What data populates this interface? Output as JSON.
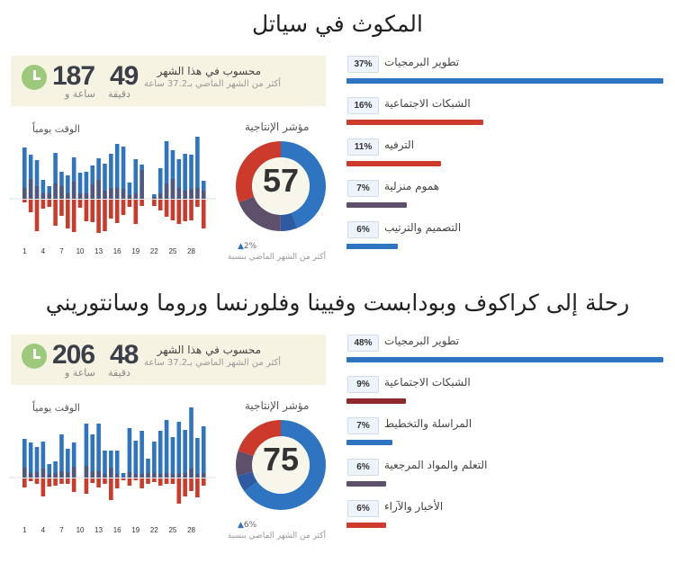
{
  "colors": {
    "productive": "#2f74c0",
    "very_productive": "#2d5aa0",
    "neutral": "#5e4f6a",
    "distracting": "#cc3a2b",
    "very_distracting": "#8e2a2e",
    "summary_bg": "#f6f3e3",
    "clock": "#9cc97b"
  },
  "sections": [
    {
      "title": "المكوث في سياتل",
      "summary": {
        "icon": "clock-icon",
        "hours": "187",
        "hours_unit": "ساعة و",
        "minutes": "49",
        "minutes_unit": "دقيقة",
        "label": "محسوب في هذا الشهر",
        "comparison": "أكثر من الشهر الماضي بـ37.2 ساعة"
      },
      "daily_label": "الوقت يومياً",
      "productivity": {
        "label": "مؤشر الإنتاجية",
        "score": "57",
        "change": "2%",
        "change_icon": "arrow-up-icon",
        "change_note": "أكثر من الشهر الماضي بنسبة",
        "segments": [
          {
            "kind": "productive",
            "percent": 44
          },
          {
            "kind": "very_productive",
            "percent": 6
          },
          {
            "kind": "neutral",
            "percent": 19
          },
          {
            "kind": "distracting",
            "percent": 31
          }
        ]
      },
      "chart_data": {
        "type": "bar",
        "tick_labels": [
          "1",
          "4",
          "7",
          "10",
          "13",
          "16",
          "19",
          "22",
          "25",
          "28"
        ],
        "days": [
          1,
          2,
          3,
          4,
          5,
          6,
          7,
          8,
          9,
          10,
          11,
          12,
          13,
          14,
          15,
          16,
          17,
          18,
          19,
          20,
          21,
          22,
          23,
          24,
          25,
          26,
          27,
          28,
          29,
          30
        ],
        "productive": [
          57,
          49,
          43,
          21,
          14,
          51,
          30,
          26,
          46,
          29,
          30,
          37,
          45,
          39,
          50,
          61,
          58,
          18,
          44,
          38,
          0,
          5,
          34,
          64,
          54,
          44,
          50,
          49,
          69,
          20
        ],
        "neutral": [
          12,
          22,
          14,
          6,
          6,
          17,
          14,
          6,
          19,
          6,
          6,
          16,
          21,
          9,
          12,
          12,
          11,
          4,
          6,
          32,
          0,
          2,
          6,
          17,
          22,
          12,
          9,
          11,
          12,
          9
        ],
        "distracting": [
          3,
          14,
          35,
          10,
          8,
          29,
          18,
          32,
          36,
          9,
          24,
          25,
          37,
          35,
          21,
          26,
          17,
          8,
          27,
          7,
          0,
          7,
          12,
          19,
          23,
          27,
          24,
          23,
          8,
          32
        ]
      },
      "categories": [
        {
          "name": "تطوير البرمجيات",
          "percent": 37,
          "label": "37%",
          "color": "productive"
        },
        {
          "name": "الشبكات الاجتماعية",
          "percent": 16,
          "label": "16%",
          "color": "distracting"
        },
        {
          "name": "الترفيه",
          "percent": 11,
          "label": "11%",
          "color": "distracting"
        },
        {
          "name": "هموم منزلية",
          "percent": 7,
          "label": "7%",
          "color": "neutral"
        },
        {
          "name": "التصميم والترتيب",
          "percent": 6,
          "label": "6%",
          "color": "productive"
        }
      ]
    },
    {
      "title": "رحلة إلى كراكوف وبودابست وفيينا وفلورنسا وروما وسانتوريني",
      "summary": {
        "icon": "clock-icon",
        "hours": "206",
        "hours_unit": "ساعة و",
        "minutes": "48",
        "minutes_unit": "دقيقة",
        "label": "محسوب في هذا الشهر",
        "comparison": "أكثر من الشهر الماضي بـ37.2 ساعة"
      },
      "daily_label": "الوقت يومياً",
      "productivity": {
        "label": "مؤشر الإنتاجية",
        "score": "75",
        "change": "6%",
        "change_icon": "arrow-up-icon",
        "change_note": "أكثر من الشهر الماضي بنسبة",
        "segments": [
          {
            "kind": "productive",
            "percent": 65
          },
          {
            "kind": "very_productive",
            "percent": 6
          },
          {
            "kind": "neutral",
            "percent": 9
          },
          {
            "kind": "distracting",
            "percent": 20
          }
        ]
      },
      "chart_data": {
        "type": "bar",
        "tick_labels": [
          "1",
          "4",
          "7",
          "10",
          "13",
          "16",
          "19",
          "22",
          "25",
          "28"
        ],
        "days": [
          1,
          2,
          3,
          4,
          5,
          6,
          7,
          8,
          9,
          10,
          11,
          12,
          13,
          14,
          15,
          16,
          17,
          18,
          19,
          20,
          21,
          22,
          23,
          24,
          25,
          26,
          27,
          28,
          29,
          30
        ],
        "productive": [
          43,
          39,
          34,
          40,
          15,
          18,
          48,
          32,
          39,
          0,
          60,
          48,
          60,
          30,
          30,
          30,
          5,
          55,
          41,
          52,
          21,
          40,
          52,
          64,
          45,
          62,
          53,
          78,
          44,
          57
        ],
        "neutral": [
          11,
          5,
          6,
          10,
          4,
          5,
          7,
          6,
          12,
          0,
          13,
          7,
          7,
          4,
          11,
          4,
          0,
          6,
          4,
          4,
          5,
          5,
          4,
          5,
          4,
          5,
          5,
          10,
          4,
          5
        ],
        "distracting": [
          10,
          3,
          6,
          20,
          9,
          8,
          6,
          6,
          15,
          0,
          17,
          5,
          10,
          6,
          24,
          11,
          2,
          8,
          2,
          11,
          6,
          4,
          8,
          6,
          6,
          28,
          20,
          14,
          21,
          8
        ]
      },
      "categories": [
        {
          "name": "تطوير البرمجيات",
          "percent": 48,
          "label": "48%",
          "color": "productive"
        },
        {
          "name": "الشبكات الاجتماعية",
          "percent": 9,
          "label": "9%",
          "color": "very_distracting"
        },
        {
          "name": "المراسلة والتخطيط",
          "percent": 7,
          "label": "7%",
          "color": "productive"
        },
        {
          "name": "التعلم والمواد المرجعية",
          "percent": 6,
          "label": "6%",
          "color": "neutral"
        },
        {
          "name": "الأخبار والآراء",
          "percent": 6,
          "label": "6%",
          "color": "distracting"
        }
      ]
    }
  ]
}
